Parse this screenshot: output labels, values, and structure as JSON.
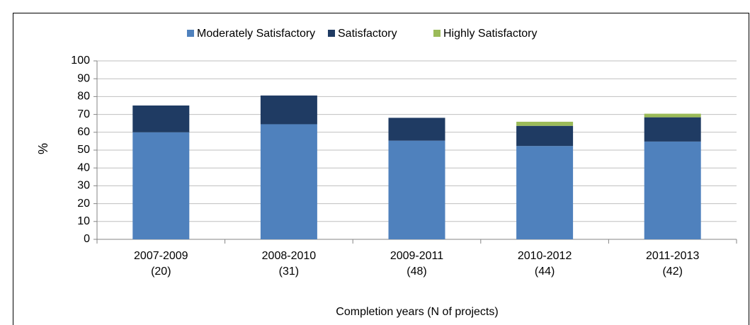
{
  "chart_data": {
    "type": "stacked_bar",
    "categories": [
      [
        "2007-2009",
        "(20)"
      ],
      [
        "2008-2010",
        "(31)"
      ],
      [
        "2009-2011",
        "(48)"
      ],
      [
        "2010-2012",
        "(44)"
      ],
      [
        "2011-2013",
        "(42)"
      ]
    ],
    "series": [
      {
        "name": "Moderately Satisfactory",
        "color": "#4f81bd",
        "values": [
          60,
          64.5,
          55.3,
          52.3,
          54.8
        ]
      },
      {
        "name": "Satisfactory",
        "color": "#1f3b63",
        "values": [
          15,
          16.1,
          12.8,
          11.3,
          13.6
        ]
      },
      {
        "name": "Highly Satisfactory",
        "color": "#9bbb59",
        "values": [
          0,
          0,
          0,
          2.3,
          2.0
        ]
      }
    ],
    "ylabel": "%",
    "xlabel": "Completion years (N of projects)",
    "ylim": [
      0,
      100
    ],
    "yticks": [
      0,
      10,
      20,
      30,
      40,
      50,
      60,
      70,
      80,
      90,
      100
    ],
    "grid": true
  }
}
